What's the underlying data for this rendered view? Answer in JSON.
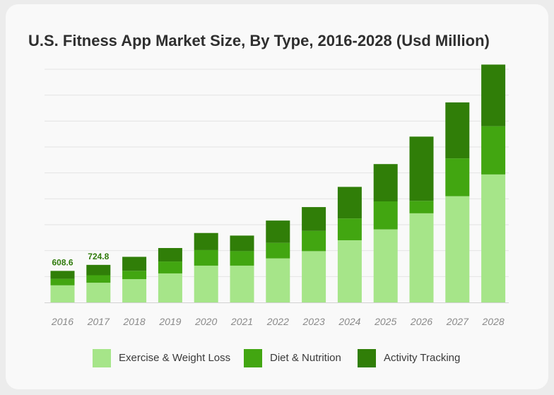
{
  "chart_data": {
    "type": "bar",
    "stacked": true,
    "title": "U.S. Fitness App Market Size, By Type, 2016-2028 (Usd Million)",
    "xlabel": "",
    "ylabel": "",
    "categories": [
      "2016",
      "2017",
      "2018",
      "2019",
      "2020",
      "2021",
      "2022",
      "2023",
      "2024",
      "2025",
      "2026",
      "2027",
      "2028"
    ],
    "series": [
      {
        "name": "Exercise & Weight Loss",
        "color": "#a6e589",
        "values": [
          330,
          380,
          450,
          560,
          710,
          710,
          850,
          990,
          1200,
          1410,
          1720,
          2050,
          2470
        ]
      },
      {
        "name": "Diet & Nutrition",
        "color": "#42a611",
        "values": [
          125,
          145,
          160,
          230,
          300,
          280,
          300,
          390,
          420,
          540,
          240,
          730,
          930
        ]
      },
      {
        "name": "Activity Tracking",
        "color": "#307e08",
        "values": [
          153.6,
          199.8,
          270,
          260,
          330,
          300,
          430,
          460,
          610,
          720,
          1240,
          1080,
          1190
        ]
      }
    ],
    "totals_labels": [
      "608.6",
      "724.8"
    ],
    "ylim": [
      0,
      4500
    ],
    "grid": true,
    "legend_position": "bottom"
  }
}
